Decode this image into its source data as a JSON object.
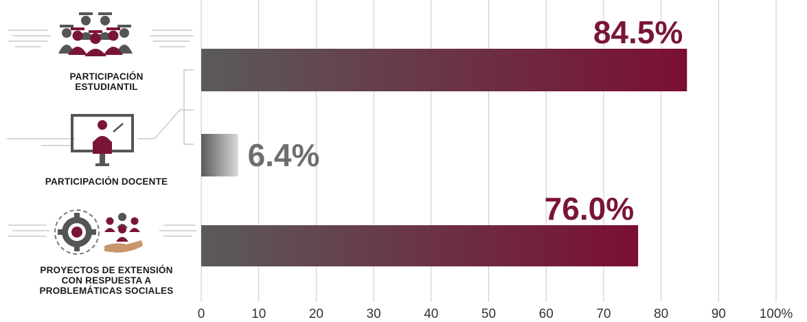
{
  "colors": {
    "bar_start": "#5a5a5c",
    "bar_end": "#7a0f33",
    "small_bar_start": "#5a5a5c",
    "small_bar_end": "#d9d9d9",
    "value_highlight": "#7a1535",
    "value_muted": "#6e6e6e",
    "icon_maroon": "#7a1535",
    "icon_gray": "#555555",
    "grid": "#c8c8c8"
  },
  "chart_data": {
    "type": "bar",
    "orientation": "horizontal",
    "categories": [
      "PARTICIPACIÓN ESTUDIANTIL",
      "PARTICIPACIÓN DOCENTE",
      "PROYECTOS DE EXTENSIÓN CON RESPUESTA A PROBLEMÁTICAS SOCIALES"
    ],
    "category_lines": [
      [
        "PARTICIPACIÓN",
        "ESTUDIANTIL"
      ],
      [
        "PARTICIPACIÓN DOCENTE"
      ],
      [
        "PROYECTOS DE EXTENSIÓN",
        "CON RESPUESTA A",
        "PROBLEMÁTICAS SOCIALES"
      ]
    ],
    "values": [
      84.5,
      6.4,
      76.0
    ],
    "value_labels": [
      "84.5%",
      "6.4%",
      "76.0%"
    ],
    "xlim": [
      0,
      100
    ],
    "x_ticks": [
      0,
      10,
      20,
      30,
      40,
      50,
      60,
      70,
      80,
      90,
      100
    ],
    "x_tick_labels": [
      "0",
      "10",
      "20",
      "30",
      "40",
      "50",
      "60",
      "70",
      "80",
      "90",
      "100%"
    ],
    "grid": true,
    "legend": false,
    "icons": [
      "graduates-icon",
      "teacher-icon",
      "gear-community-icon"
    ]
  }
}
